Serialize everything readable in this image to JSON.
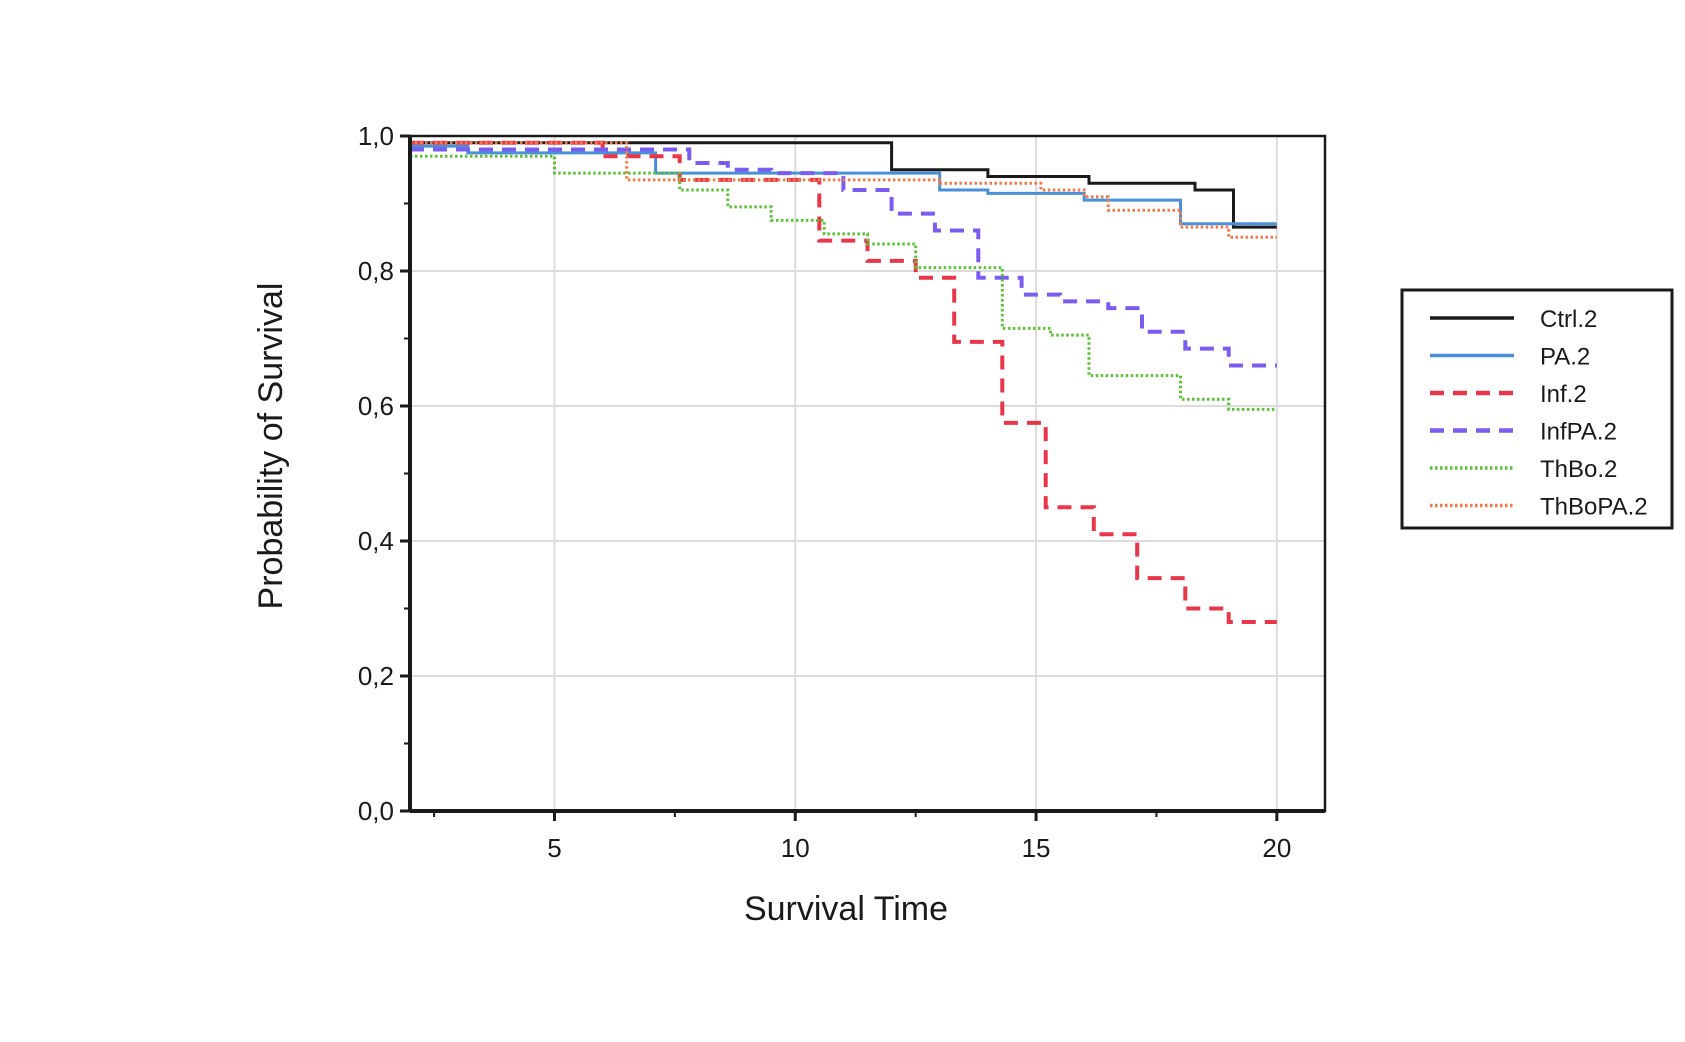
{
  "chart_data": {
    "type": "line",
    "step": true,
    "xlabel": "Survival Time",
    "ylabel": "Probability of Survival",
    "xlim": [
      2,
      21
    ],
    "ylim": [
      0,
      1.0
    ],
    "xticks": [
      5,
      10,
      15,
      20
    ],
    "xtick_labels": [
      "5",
      "10",
      "15",
      "20"
    ],
    "yticks": [
      0,
      0.2,
      0.4,
      0.6,
      0.8,
      1.0
    ],
    "ytick_labels": [
      "0,0",
      "0,2",
      "0,4",
      "0,6",
      "0,8",
      "1,0"
    ],
    "grid": true,
    "legend_position": "right",
    "series": [
      {
        "name": "Ctrl.2",
        "color": "#1a1a1a",
        "style": "solid",
        "points": [
          [
            2,
            0.99
          ],
          [
            12,
            0.99
          ],
          [
            12,
            0.95
          ],
          [
            14,
            0.95
          ],
          [
            14,
            0.94
          ],
          [
            16.1,
            0.94
          ],
          [
            16.1,
            0.93
          ],
          [
            18.3,
            0.93
          ],
          [
            18.3,
            0.92
          ],
          [
            19.1,
            0.92
          ],
          [
            19.1,
            0.865
          ],
          [
            20,
            0.865
          ]
        ]
      },
      {
        "name": "PA.2",
        "color": "#4a90d9",
        "style": "solid",
        "points": [
          [
            2,
            0.985
          ],
          [
            3.2,
            0.985
          ],
          [
            3.2,
            0.975
          ],
          [
            7.1,
            0.975
          ],
          [
            7.1,
            0.945
          ],
          [
            13,
            0.945
          ],
          [
            13,
            0.92
          ],
          [
            14,
            0.92
          ],
          [
            14,
            0.915
          ],
          [
            16,
            0.915
          ],
          [
            16,
            0.905
          ],
          [
            18,
            0.905
          ],
          [
            18,
            0.87
          ],
          [
            20,
            0.87
          ]
        ]
      },
      {
        "name": "Inf.2",
        "color": "#e8374a",
        "style": "dashed",
        "points": [
          [
            2,
            0.99
          ],
          [
            6,
            0.99
          ],
          [
            6,
            0.97
          ],
          [
            7.6,
            0.97
          ],
          [
            7.6,
            0.935
          ],
          [
            10.5,
            0.935
          ],
          [
            10.5,
            0.845
          ],
          [
            11.5,
            0.845
          ],
          [
            11.5,
            0.815
          ],
          [
            12.5,
            0.815
          ],
          [
            12.5,
            0.79
          ],
          [
            13.3,
            0.79
          ],
          [
            13.3,
            0.695
          ],
          [
            14.3,
            0.695
          ],
          [
            14.3,
            0.575
          ],
          [
            15.2,
            0.575
          ],
          [
            15.2,
            0.45
          ],
          [
            16.2,
            0.45
          ],
          [
            16.2,
            0.41
          ],
          [
            17.1,
            0.41
          ],
          [
            17.1,
            0.345
          ],
          [
            18.1,
            0.345
          ],
          [
            18.1,
            0.3
          ],
          [
            19,
            0.3
          ],
          [
            19,
            0.28
          ],
          [
            20,
            0.28
          ]
        ]
      },
      {
        "name": "InfPA.2",
        "color": "#7b5cf0",
        "style": "dashed",
        "points": [
          [
            2,
            0.98
          ],
          [
            7.8,
            0.98
          ],
          [
            7.8,
            0.96
          ],
          [
            8.6,
            0.96
          ],
          [
            8.6,
            0.95
          ],
          [
            9.5,
            0.95
          ],
          [
            9.5,
            0.945
          ],
          [
            11,
            0.945
          ],
          [
            11,
            0.92
          ],
          [
            12,
            0.92
          ],
          [
            12,
            0.885
          ],
          [
            12.9,
            0.885
          ],
          [
            12.9,
            0.86
          ],
          [
            13.8,
            0.86
          ],
          [
            13.8,
            0.79
          ],
          [
            14.7,
            0.79
          ],
          [
            14.7,
            0.765
          ],
          [
            15.5,
            0.765
          ],
          [
            15.5,
            0.755
          ],
          [
            16.5,
            0.755
          ],
          [
            16.5,
            0.745
          ],
          [
            17.2,
            0.745
          ],
          [
            17.2,
            0.71
          ],
          [
            18.1,
            0.71
          ],
          [
            18.1,
            0.685
          ],
          [
            19,
            0.685
          ],
          [
            19,
            0.66
          ],
          [
            20,
            0.66
          ]
        ]
      },
      {
        "name": "ThBo.2",
        "color": "#5bc236",
        "style": "dotted",
        "points": [
          [
            2,
            0.97
          ],
          [
            5,
            0.97
          ],
          [
            5,
            0.945
          ],
          [
            7.6,
            0.945
          ],
          [
            7.6,
            0.92
          ],
          [
            8.6,
            0.92
          ],
          [
            8.6,
            0.895
          ],
          [
            9.5,
            0.895
          ],
          [
            9.5,
            0.875
          ],
          [
            10.6,
            0.875
          ],
          [
            10.6,
            0.855
          ],
          [
            11.5,
            0.855
          ],
          [
            11.5,
            0.84
          ],
          [
            12.5,
            0.84
          ],
          [
            12.5,
            0.805
          ],
          [
            14.3,
            0.805
          ],
          [
            14.3,
            0.715
          ],
          [
            15.3,
            0.715
          ],
          [
            15.3,
            0.705
          ],
          [
            16.1,
            0.705
          ],
          [
            16.1,
            0.645
          ],
          [
            18,
            0.645
          ],
          [
            18,
            0.61
          ],
          [
            19,
            0.61
          ],
          [
            19,
            0.595
          ],
          [
            20,
            0.595
          ]
        ]
      },
      {
        "name": "ThBoPA.2",
        "color": "#f07a4a",
        "style": "dotted",
        "points": [
          [
            2,
            0.99
          ],
          [
            6.5,
            0.99
          ],
          [
            6.5,
            0.935
          ],
          [
            13,
            0.935
          ],
          [
            13,
            0.93
          ],
          [
            15.1,
            0.93
          ],
          [
            15.1,
            0.92
          ],
          [
            16,
            0.92
          ],
          [
            16,
            0.91
          ],
          [
            16.5,
            0.91
          ],
          [
            16.5,
            0.89
          ],
          [
            18,
            0.89
          ],
          [
            18,
            0.865
          ],
          [
            19,
            0.865
          ],
          [
            19,
            0.85
          ],
          [
            20,
            0.85
          ]
        ]
      }
    ]
  }
}
